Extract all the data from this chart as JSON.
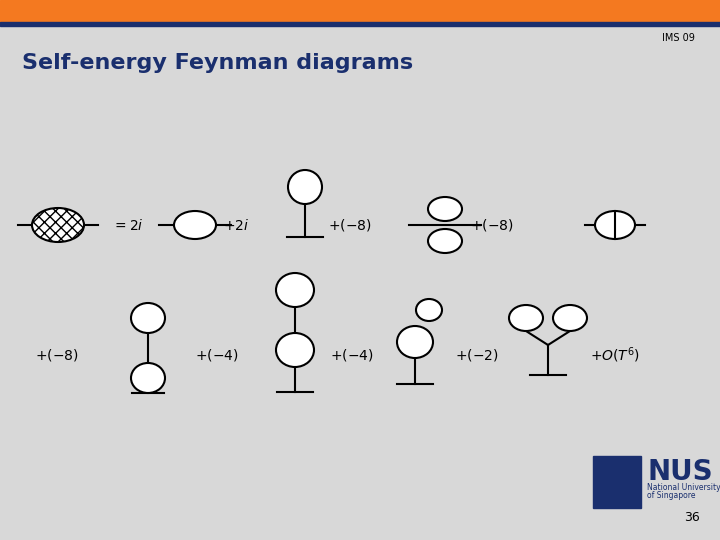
{
  "title": "Self-energy Feynman diagrams",
  "slide_number": "36",
  "ims_label": "IMS 09",
  "bg_color": "#d8d8d8",
  "orange_bar_color": "#f47920",
  "navy_bar_color": "#1a2f6e",
  "title_color": "#1a2f6e",
  "diagram_color": "#000000",
  "text_color": "#000000",
  "fig_w": 7.2,
  "fig_h": 5.4,
  "dpi": 100
}
